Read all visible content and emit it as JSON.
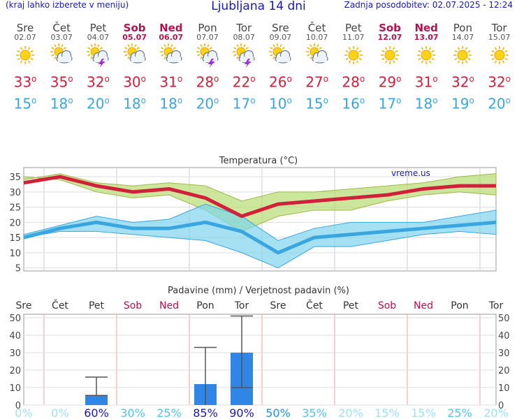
{
  "header": {
    "left": "(kraj lahko izberete v meniju)",
    "title": "Ljubljana 14 dni",
    "right": "Zadnja posodobitev: 02.07.2025 - 12:24"
  },
  "days": [
    {
      "name": "Sre",
      "date": "02.07",
      "weekend": false,
      "icon": "sun-icon",
      "max": "33",
      "min": "15"
    },
    {
      "name": "Čet",
      "date": "03.07",
      "weekend": false,
      "icon": "sun-cloud-icon",
      "max": "35",
      "min": "18"
    },
    {
      "name": "Pet",
      "date": "04.07",
      "weekend": false,
      "icon": "sun-storm-icon",
      "max": "32",
      "min": "20"
    },
    {
      "name": "Sob",
      "date": "05.07",
      "weekend": true,
      "icon": "sun-cloud-icon",
      "max": "30",
      "min": "18"
    },
    {
      "name": "Ned",
      "date": "06.07",
      "weekend": true,
      "icon": "sun-cloud-icon",
      "max": "31",
      "min": "18"
    },
    {
      "name": "Pon",
      "date": "07.07",
      "weekend": false,
      "icon": "sun-storm-icon",
      "max": "28",
      "min": "20"
    },
    {
      "name": "Tor",
      "date": "08.07",
      "weekend": false,
      "icon": "sun-storm-icon",
      "max": "22",
      "min": "17"
    },
    {
      "name": "Sre",
      "date": "09.07",
      "weekend": false,
      "icon": "sun-cloud-icon",
      "max": "26",
      "min": "10"
    },
    {
      "name": "Čet",
      "date": "10.07",
      "weekend": false,
      "icon": "sun-cloud-icon",
      "max": "27",
      "min": "15"
    },
    {
      "name": "Pet",
      "date": "11.07",
      "weekend": false,
      "icon": "sun-icon",
      "max": "28",
      "min": "16"
    },
    {
      "name": "Sob",
      "date": "12.07",
      "weekend": true,
      "icon": "sun-icon",
      "max": "29",
      "min": "17"
    },
    {
      "name": "Ned",
      "date": "13.07",
      "weekend": true,
      "icon": "sun-icon",
      "max": "31",
      "min": "18"
    },
    {
      "name": "Pon",
      "date": "14.07",
      "weekend": false,
      "icon": "sun-icon",
      "max": "32",
      "min": "19"
    },
    {
      "name": "Tor",
      "date": "15.07",
      "weekend": false,
      "icon": "sun-icon",
      "max": "32",
      "min": "20"
    }
  ],
  "chart_data": [
    {
      "type": "line",
      "title": "Temperatura (°C)",
      "watermark": "vreme.us",
      "x_labels": [],
      "yticks": [
        5,
        10,
        15,
        20,
        25,
        30,
        35
      ],
      "ylim": [
        4,
        38
      ],
      "series": [
        {
          "values": [
            33,
            35,
            32,
            30,
            31,
            28,
            22,
            26,
            27,
            28,
            29,
            31,
            32,
            32
          ],
          "color": "#d1203a"
        },
        {
          "values": [
            35,
            34,
            30,
            28,
            29,
            24,
            17,
            22,
            24,
            24,
            27,
            29,
            30,
            29
          ],
          "color": "#b6dc72"
        },
        {
          "values": [
            34,
            36,
            33,
            32,
            33,
            32,
            27,
            30,
            30,
            31,
            32,
            33,
            35,
            36
          ],
          "color": "#b6dc72"
        },
        {
          "values": [
            15,
            18,
            20,
            18,
            18,
            20,
            17,
            10,
            15,
            16,
            17,
            18,
            19,
            20
          ],
          "color": "#3aa6e0"
        },
        {
          "values": [
            15,
            17,
            17,
            16,
            15,
            14,
            10,
            5,
            12,
            12,
            14,
            16,
            17,
            16
          ],
          "color": "#7fd4ec"
        },
        {
          "values": [
            16,
            19,
            22,
            20,
            21,
            26,
            22,
            14,
            18,
            20,
            20,
            20,
            22,
            24
          ],
          "color": "#7fd4ec"
        }
      ]
    },
    {
      "type": "bar",
      "title": "Padavine (mm) / Verjetnost padavin (%)",
      "categories": [
        "Sre",
        "Čet",
        "Pet",
        "Sob",
        "Ned",
        "Pon",
        "Tor",
        "Sre",
        "Čet",
        "Pet",
        "Sob",
        "Ned",
        "Pon",
        "Tor"
      ],
      "weekend": [
        false,
        false,
        false,
        true,
        true,
        false,
        false,
        false,
        false,
        false,
        true,
        true,
        false,
        false
      ],
      "values": [
        0,
        0,
        5.5,
        0,
        0,
        12,
        30,
        0,
        0,
        0,
        0,
        0,
        0,
        0
      ],
      "error_high": [
        null,
        null,
        16,
        null,
        null,
        33,
        51,
        null,
        null,
        null,
        null,
        null,
        null,
        null
      ],
      "error_low": [
        null,
        null,
        5.5,
        null,
        null,
        0,
        10,
        null,
        null,
        null,
        null,
        null,
        null,
        null
      ],
      "ylim": [
        0,
        52
      ],
      "yticks": [
        0,
        10,
        20,
        30,
        40,
        50
      ],
      "probability": [
        {
          "label": "0%",
          "color": "#9fe0f3",
          "bold": false
        },
        {
          "label": "0%",
          "color": "#9fe0f3",
          "bold": false
        },
        {
          "label": "60%",
          "color": "#1a1aa8",
          "bold": false
        },
        {
          "label": "30%",
          "color": "#55c4ea",
          "bold": false
        },
        {
          "label": "25%",
          "color": "#55c4ea",
          "bold": false
        },
        {
          "label": "85%",
          "color": "#1a1aa8",
          "bold": false
        },
        {
          "label": "90%",
          "color": "#1a1aa8",
          "bold": false
        },
        {
          "label": "50%",
          "color": "#2a8fd6",
          "bold": false
        },
        {
          "label": "35%",
          "color": "#55c4ea",
          "bold": false
        },
        {
          "label": "20%",
          "color": "#9fe0f3",
          "bold": false
        },
        {
          "label": "15%",
          "color": "#9fe0f3",
          "bold": false
        },
        {
          "label": "15%",
          "color": "#9fe0f3",
          "bold": false
        },
        {
          "label": "25%",
          "color": "#55c4ea",
          "bold": false
        },
        {
          "label": "20%",
          "color": "#9fe0f3",
          "bold": false
        }
      ]
    }
  ],
  "colors": {
    "max": "#d1203a",
    "min": "#3aa6e0",
    "weekend": "#b0134f",
    "bar": "#2f86e6"
  }
}
